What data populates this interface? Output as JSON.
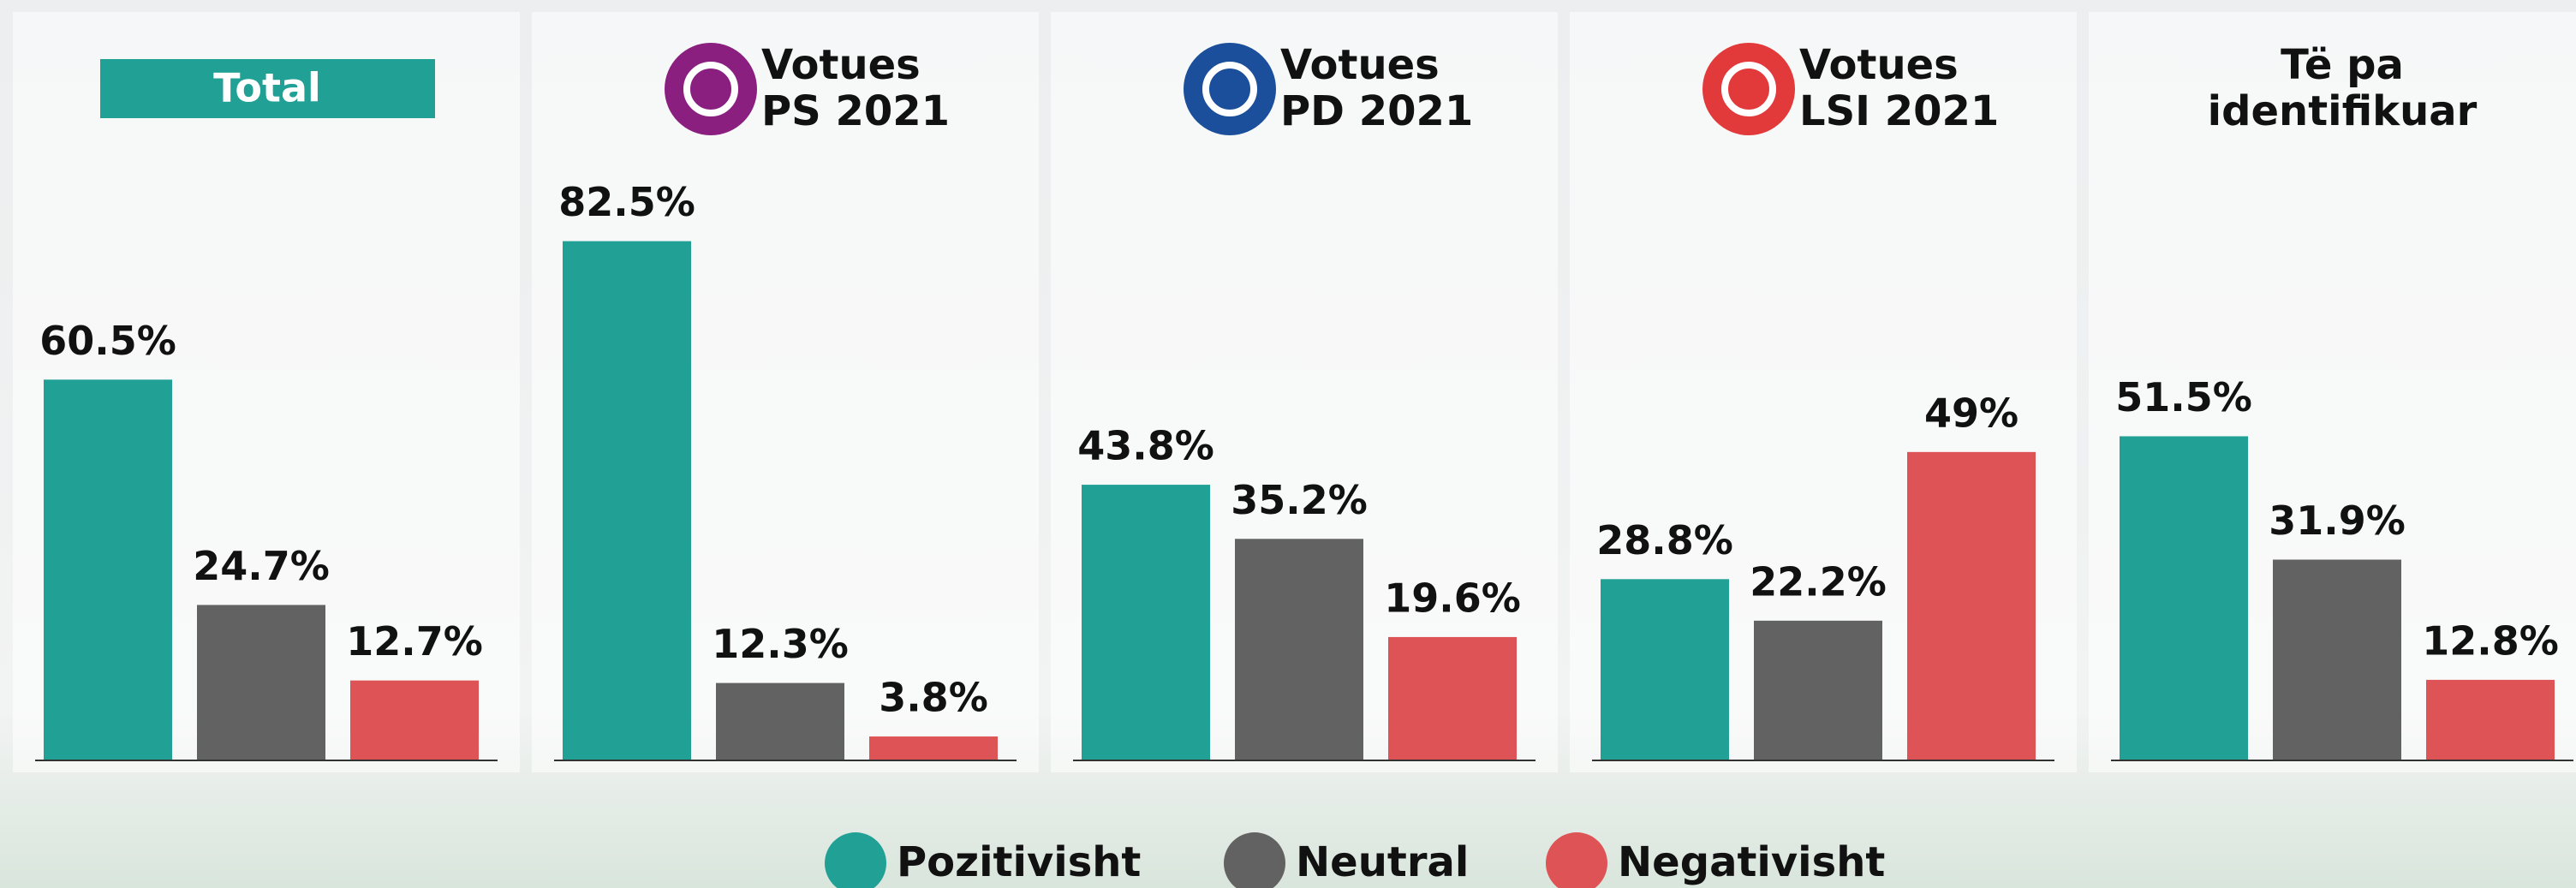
{
  "legend": {
    "names": [
      "Pozitivisht",
      "Neutral",
      "Negativisht"
    ],
    "colors": [
      "#21a096",
      "#626262",
      "#de5356"
    ]
  },
  "chart_data": [
    {
      "type": "bar",
      "title": [
        "Total"
      ],
      "title_box_color": "#21a096",
      "values": [
        60.5,
        24.7,
        12.7
      ],
      "value_labels": [
        "60.5%",
        "24.7%",
        "12.7%"
      ]
    },
    {
      "type": "bar",
      "title": [
        "Votues",
        "PS 2021"
      ],
      "icon_color": "#8a1f80",
      "values": [
        82.5,
        12.3,
        3.8
      ],
      "value_labels": [
        "82.5%",
        "12.3%",
        "3.8%"
      ]
    },
    {
      "type": "bar",
      "title": [
        "Votues",
        "PD 2021"
      ],
      "icon_color": "#1b4e9b",
      "values": [
        43.8,
        35.2,
        19.6
      ],
      "value_labels": [
        "43.8%",
        "35.2%",
        "19.6%"
      ]
    },
    {
      "type": "bar",
      "title": [
        "Votues",
        "LSI 2021"
      ],
      "icon_color": "#e2393b",
      "values": [
        28.8,
        22.2,
        49
      ],
      "value_labels": [
        "28.8%",
        "22.2%",
        "49%"
      ]
    },
    {
      "type": "bar",
      "title": [
        "Të pa",
        "identifikuar"
      ],
      "values": [
        51.5,
        31.9,
        12.8
      ],
      "value_labels": [
        "51.5%",
        "31.9%",
        "12.8%"
      ]
    }
  ]
}
